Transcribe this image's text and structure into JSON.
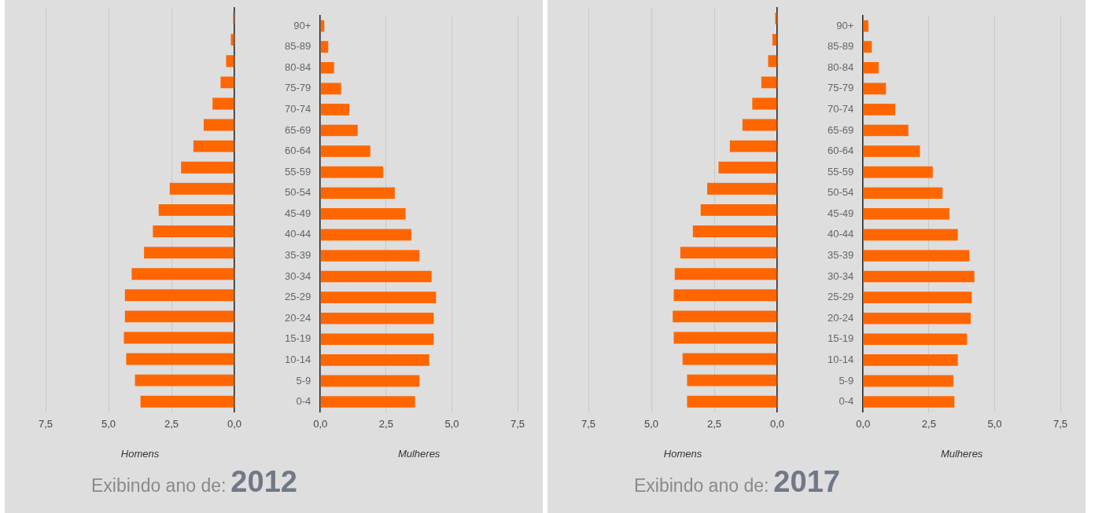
{
  "chart_data": [
    {
      "type": "bar",
      "orientation": "horizontal",
      "xlabel": "Homens",
      "annotations": [
        "Exibindo ano de:",
        "2012"
      ],
      "categories": [
        null,
        null,
        null,
        null,
        null,
        null,
        null,
        null,
        null,
        null,
        null,
        null,
        null,
        null,
        null,
        null,
        null,
        null,
        null
      ],
      "values": [
        0.05,
        0.14,
        0.33,
        0.55,
        0.87,
        1.22,
        1.63,
        2.12,
        2.57,
        3.01,
        3.24,
        3.59,
        4.08,
        4.35,
        4.35,
        4.39,
        4.3,
        3.95,
        3.73
      ],
      "color": "#ff6600",
      "xlim": [
        7.5,
        0
      ],
      "xticks": [
        {
          "value": 7.5,
          "label": "7,5"
        },
        {
          "value": 5,
          "label": "5,0"
        },
        {
          "value": 2.5,
          "label": "2,5"
        },
        {
          "value": 0,
          "label": "0,0"
        }
      ],
      "grid": "x",
      "tick_labels": "x"
    },
    {
      "type": "bar",
      "orientation": "horizontal",
      "xlabel": "Mulheres",
      "categories": [
        "90+",
        "85-89",
        "80-84",
        "75-79",
        "70-74",
        "65-69",
        "60-64",
        "55-59",
        "50-54",
        "45-49",
        "40-44",
        "35-39",
        "30-34",
        "25-29",
        "20-24",
        "15-19",
        "10-14",
        "5-9",
        "0-4"
      ],
      "values": [
        0.15,
        0.3,
        0.52,
        0.79,
        1.1,
        1.42,
        1.9,
        2.39,
        2.83,
        3.24,
        3.46,
        3.77,
        4.23,
        4.4,
        4.31,
        4.31,
        4.14,
        3.77,
        3.6
      ],
      "color": "#ff6600",
      "xlim": [
        0,
        7.5
      ],
      "xticks": [
        {
          "value": 0,
          "label": "0,0"
        },
        {
          "value": 2.5,
          "label": "2,5"
        },
        {
          "value": 5,
          "label": "5,0"
        },
        {
          "value": 7.5,
          "label": "7,5"
        }
      ],
      "grid": "x"
    },
    {
      "type": "bar",
      "orientation": "horizontal",
      "xlabel": "Homens",
      "annotations": [
        "Exibindo ano de:",
        "2017"
      ],
      "categories": [
        null,
        null,
        null,
        null,
        null,
        null,
        null,
        null,
        null,
        null,
        null,
        null,
        null,
        null,
        null,
        null,
        null,
        null,
        null
      ],
      "values": [
        0.08,
        0.19,
        0.36,
        0.63,
        0.99,
        1.38,
        1.88,
        2.33,
        2.78,
        3.04,
        3.35,
        3.85,
        4.07,
        4.11,
        4.15,
        4.11,
        3.76,
        3.58,
        3.58
      ],
      "color": "#ff6600",
      "xlim": [
        7.5,
        0
      ],
      "xticks": [
        {
          "value": 7.5,
          "label": "7,5"
        },
        {
          "value": 5,
          "label": "5,0"
        },
        {
          "value": 2.5,
          "label": "2,5"
        },
        {
          "value": 0,
          "label": "0,0"
        }
      ],
      "grid": "x",
      "tick_labels": "x"
    },
    {
      "type": "bar",
      "orientation": "horizontal",
      "xlabel": "Mulheres",
      "categories": [
        "90+",
        "85-89",
        "80-84",
        "75-79",
        "70-74",
        "65-69",
        "60-64",
        "55-59",
        "50-54",
        "45-49",
        "40-44",
        "35-39",
        "30-34",
        "25-29",
        "20-24",
        "15-19",
        "10-14",
        "5-9",
        "0-4"
      ],
      "values": [
        0.2,
        0.33,
        0.59,
        0.87,
        1.22,
        1.72,
        2.16,
        2.65,
        3.02,
        3.28,
        3.6,
        4.04,
        4.23,
        4.13,
        4.09,
        3.95,
        3.6,
        3.43,
        3.47
      ],
      "color": "#ff6600",
      "xlim": [
        0,
        7.5
      ],
      "xticks": [
        {
          "value": 0,
          "label": "0,0"
        },
        {
          "value": 2.5,
          "label": "2,5"
        },
        {
          "value": 5,
          "label": "5,0"
        },
        {
          "value": 7.5,
          "label": "7,5"
        }
      ],
      "grid": "x"
    }
  ]
}
